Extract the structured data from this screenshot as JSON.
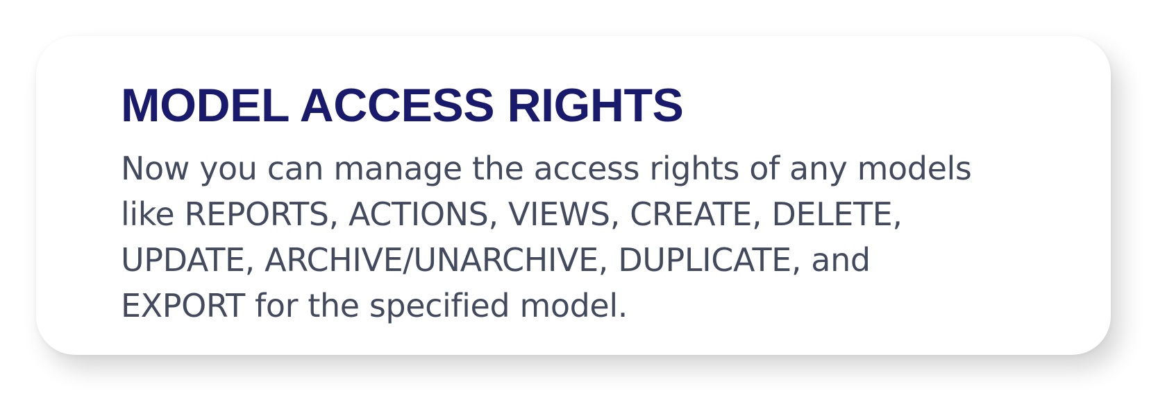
{
  "card": {
    "title": "MODEL ACCESS RIGHTS",
    "description_lines": [
      "Now you can manage the access rights of any models",
      "like REPORTS, ACTIONS, VIEWS, CREATE, DELETE,",
      "UPDATE, ARCHIVE/UNARCHIVE, DUPLICATE, and",
      "EXPORT for the specified model."
    ]
  },
  "colors": {
    "title": "#1a1a6c",
    "body_text": "#434a5e",
    "card_background": "#ffffff"
  }
}
